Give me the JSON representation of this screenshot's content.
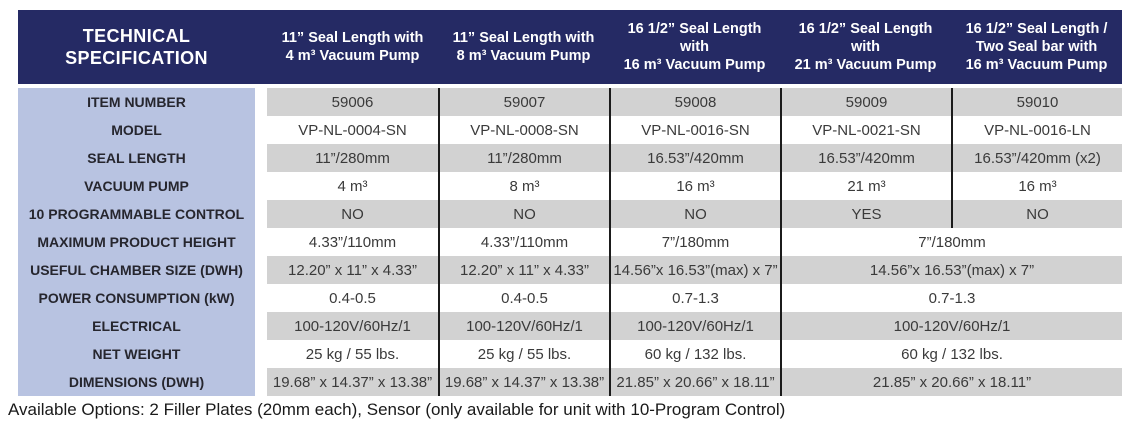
{
  "colors": {
    "header_navy": "#252a64",
    "label_column_blue": "#b8c3e1",
    "row_gray": "#d2d2d2",
    "divider_line": "#1b1b1b"
  },
  "header": {
    "title": "TECHNICAL\nSPECIFICATION",
    "columns": [
      "11” Seal Length with\n4 m³ Vacuum Pump",
      "11” Seal Length with\n8 m³ Vacuum Pump",
      "16 1/2” Seal Length with\n16 m³ Vacuum Pump",
      "16 1/2” Seal Length with\n21 m³ Vacuum Pump",
      "16 1/2” Seal Length /\nTwo Seal bar with\n16 m³ Vacuum Pump"
    ]
  },
  "rows": [
    {
      "label": "ITEM NUMBER",
      "cells": [
        {
          "text": "59006"
        },
        {
          "text": "59007"
        },
        {
          "text": "59008"
        },
        {
          "text": "59009"
        },
        {
          "text": "59010"
        }
      ]
    },
    {
      "label": "MODEL",
      "cells": [
        {
          "text": "VP-NL-0004-SN"
        },
        {
          "text": "VP-NL-0008-SN"
        },
        {
          "text": "VP-NL-0016-SN"
        },
        {
          "text": "VP-NL-0021-SN"
        },
        {
          "text": "VP-NL-0016-LN"
        }
      ]
    },
    {
      "label": "SEAL LENGTH",
      "cells": [
        {
          "text": "11”/280mm"
        },
        {
          "text": "11”/280mm"
        },
        {
          "text": "16.53”/420mm"
        },
        {
          "text": "16.53”/420mm"
        },
        {
          "text": "16.53”/420mm (x2)"
        }
      ]
    },
    {
      "label": "VACUUM PUMP",
      "cells": [
        {
          "text": "4 m³"
        },
        {
          "text": "8 m³"
        },
        {
          "text": "16 m³"
        },
        {
          "text": "21 m³"
        },
        {
          "text": "16 m³"
        }
      ]
    },
    {
      "label": "10 PROGRAMMABLE CONTROL",
      "cells": [
        {
          "text": "NO"
        },
        {
          "text": "NO"
        },
        {
          "text": "NO"
        },
        {
          "text": "YES"
        },
        {
          "text": "NO"
        }
      ]
    },
    {
      "label": "MAXIMUM PRODUCT HEIGHT",
      "cells": [
        {
          "text": "4.33”/110mm"
        },
        {
          "text": "4.33”/110mm"
        },
        {
          "text": "7”/180mm"
        },
        {
          "text": "7”/180mm",
          "colspan": 2
        }
      ]
    },
    {
      "label": "USEFUL CHAMBER SIZE (DWH)",
      "cells": [
        {
          "text": "12.20” x 11” x 4.33”"
        },
        {
          "text": "12.20” x 11” x 4.33”"
        },
        {
          "text": "14.56”x 16.53”(max) x 7”"
        },
        {
          "text": "14.56”x 16.53”(max) x 7”",
          "colspan": 2
        }
      ]
    },
    {
      "label": "POWER CONSUMPTION (kW)",
      "cells": [
        {
          "text": "0.4-0.5"
        },
        {
          "text": "0.4-0.5"
        },
        {
          "text": "0.7-1.3"
        },
        {
          "text": "0.7-1.3",
          "colspan": 2
        }
      ]
    },
    {
      "label": "ELECTRICAL",
      "cells": [
        {
          "text": "100-120V/60Hz/1"
        },
        {
          "text": "100-120V/60Hz/1"
        },
        {
          "text": "100-120V/60Hz/1"
        },
        {
          "text": "100-120V/60Hz/1",
          "colspan": 2
        }
      ]
    },
    {
      "label": "NET  WEIGHT",
      "cells": [
        {
          "text": "25 kg / 55 lbs."
        },
        {
          "text": "25 kg / 55 lbs."
        },
        {
          "text": "60 kg / 132 lbs."
        },
        {
          "text": "60 kg / 132 lbs.",
          "colspan": 2
        }
      ]
    },
    {
      "label": "DIMENSIONS (DWH)",
      "cells": [
        {
          "text": "19.68” x 14.37” x 13.38”"
        },
        {
          "text": "19.68” x 14.37” x 13.38”"
        },
        {
          "text": "21.85” x 20.66” x 18.11”"
        },
        {
          "text": "21.85” x 20.66” x 18.11”",
          "colspan": 2
        }
      ]
    }
  ],
  "footer": {
    "note": "Available Options: 2 Filler Plates (20mm each), Sensor (only available for unit with 10-Program Control)"
  }
}
